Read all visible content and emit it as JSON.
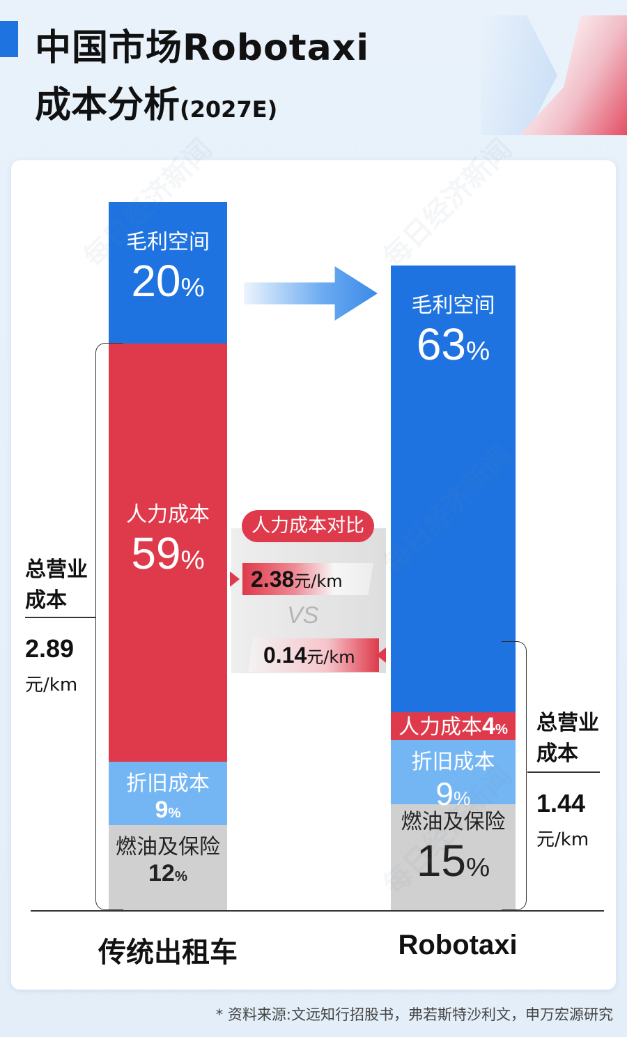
{
  "title": {
    "line1": "中国市场Robotaxi",
    "line2": "成本分析",
    "subtitle": "(2027E)"
  },
  "chart_data": {
    "type": "bar",
    "stacked": true,
    "normalized_percent": true,
    "categories": [
      "传统出租车",
      "Robotaxi"
    ],
    "series": [
      {
        "name": "燃油及保险",
        "values": [
          12,
          15
        ],
        "color": "#d0d0d0"
      },
      {
        "name": "折旧成本",
        "values": [
          9,
          9
        ],
        "color": "#74b6f4"
      },
      {
        "name": "人力成本",
        "values": [
          59,
          4
        ],
        "color": "#de3a4b"
      },
      {
        "name": "毛利空间",
        "values": [
          20,
          63
        ],
        "color": "#1e73e0"
      }
    ],
    "ylim": [
      0,
      100
    ],
    "unit": "%",
    "total_operating_cost": [
      {
        "category": "传统出租车",
        "label": "总营业成本",
        "value": "2.89",
        "unit": "元/km"
      },
      {
        "category": "Robotaxi",
        "label": "总营业成本",
        "value": "1.44",
        "unit": "元/km"
      }
    ],
    "labor_cost_comparison": {
      "label": "人力成本对比",
      "taxi": {
        "value": "2.38",
        "unit": "元/km"
      },
      "vs": "VS",
      "robotaxi": {
        "value": "0.14",
        "unit": "元/km"
      }
    }
  },
  "labels": {
    "taxi_total_line1": "总营业",
    "taxi_total_line2": "成本",
    "robo_total_line1": "总营业",
    "robo_total_line2": "成本"
  },
  "footnote": "* 资料来源:文远知行招股书，弗若斯特沙利文，申万宏源研究",
  "watermark": "每日经济新闻"
}
